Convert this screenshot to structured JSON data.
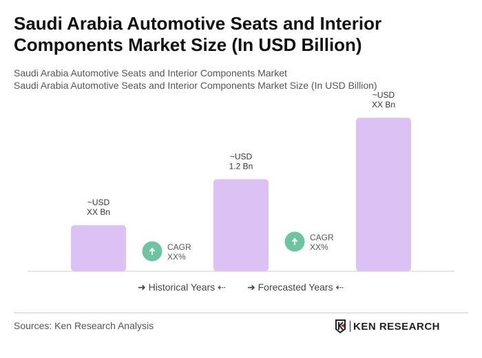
{
  "title": "Saudi Arabia Automotive Seats and Interior Components Market Size (In USD Billion)",
  "subtitle1": "Saudi Arabia Automotive Seats and Interior Components Market",
  "subtitle2": "Saudi Arabia Automotive Seats and Interior Components Market Size (In USD Billion)",
  "chart_data": {
    "type": "bar",
    "categories": [
      "",
      "",
      ""
    ],
    "values": [
      0.6,
      1.2,
      2.0
    ],
    "data_labels": [
      [
        "~USD",
        "XX Bn"
      ],
      [
        "~USD",
        "1.2 Bn"
      ],
      [
        "~USD",
        "XX Bn"
      ]
    ],
    "cagr_labels": [
      [
        "CAGR",
        "XX%"
      ],
      [
        "CAGR",
        "XX%"
      ]
    ],
    "ylim": [
      0,
      2.1
    ],
    "grid": false,
    "bar_color": "#dcc1f5",
    "cagr_color": "#6cc5a0",
    "legend": [
      "Historical Years",
      "Forecasted Years"
    ],
    "legend_placement": "bottom"
  },
  "sources": "Sources: Ken Research Analysis",
  "logo_text": "KEN RESEARCH"
}
